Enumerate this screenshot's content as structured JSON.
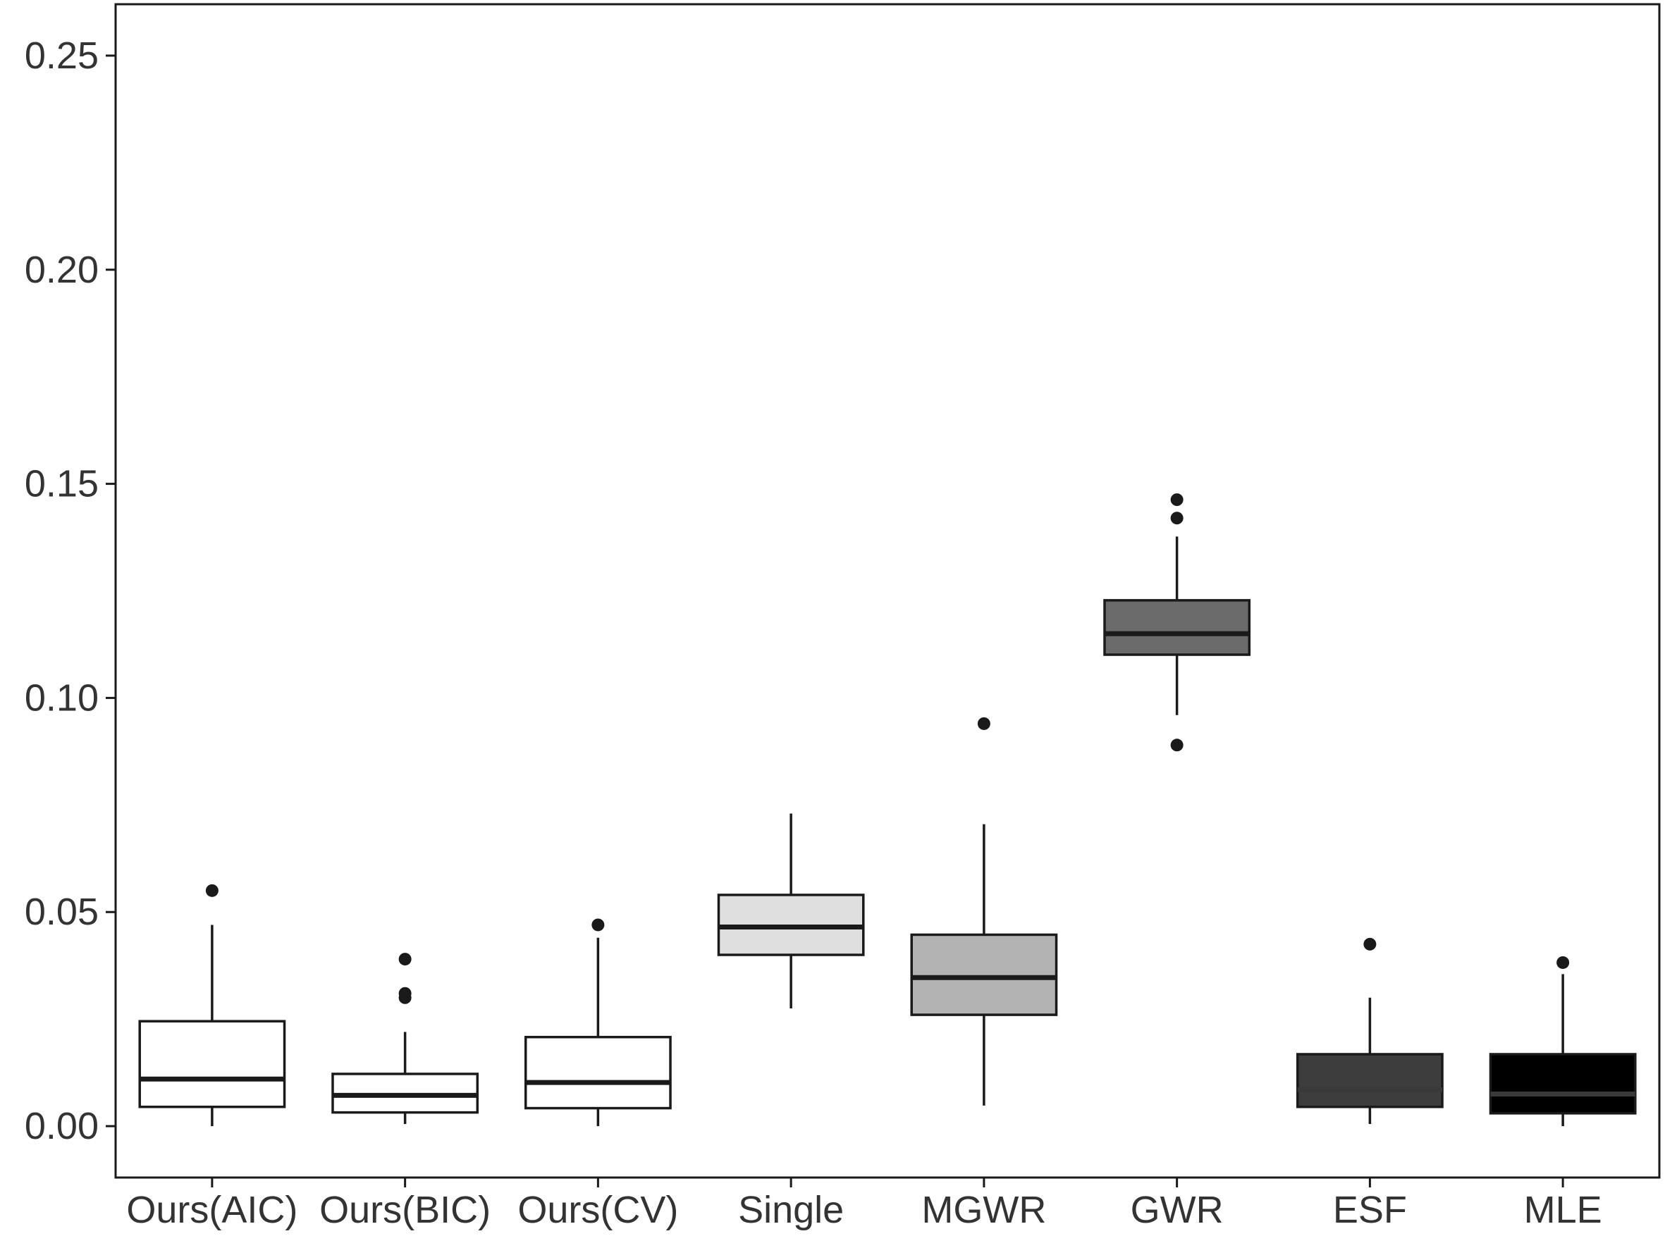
{
  "chart_data": {
    "type": "box",
    "title": "",
    "xlabel": "",
    "ylabel": "",
    "ylim": [
      -0.012,
      0.262
    ],
    "y_ticks": [
      0.0,
      0.05,
      0.1,
      0.15,
      0.2,
      0.25
    ],
    "y_tick_labels": [
      "0.00",
      "0.05",
      "0.10",
      "0.15",
      "0.20",
      "0.25"
    ],
    "categories": [
      "Ours(AIC)",
      "Ours(BIC)",
      "Ours(CV)",
      "Single",
      "MGWR",
      "GWR",
      "ESF",
      "MLE"
    ],
    "grid": false,
    "legend": "none",
    "boxes": [
      {
        "category": "Ours(AIC)",
        "fill": "#ffffff",
        "whisker_low": 0.0,
        "q1": 0.0045,
        "median": 0.011,
        "q3": 0.0245,
        "whisker_high": 0.047,
        "outliers": [
          0.055
        ]
      },
      {
        "category": "Ours(BIC)",
        "fill": "#ffffff",
        "whisker_low": 0.0005,
        "q1": 0.0032,
        "median": 0.0072,
        "q3": 0.0122,
        "whisker_high": 0.022,
        "outliers": [
          0.03,
          0.031,
          0.039
        ]
      },
      {
        "category": "Ours(CV)",
        "fill": "#ffffff",
        "whisker_low": 0.0,
        "q1": 0.0042,
        "median": 0.0102,
        "q3": 0.0208,
        "whisker_high": 0.044,
        "outliers": [
          0.047
        ]
      },
      {
        "category": "Single",
        "fill": "#dfdfdf",
        "whisker_low": 0.0275,
        "q1": 0.04,
        "median": 0.0465,
        "q3": 0.054,
        "whisker_high": 0.073,
        "outliers": []
      },
      {
        "category": "MGWR",
        "fill": "#b3b3b3",
        "whisker_low": 0.0048,
        "q1": 0.026,
        "median": 0.0347,
        "q3": 0.0447,
        "whisker_high": 0.0705,
        "outliers": [
          0.094
        ]
      },
      {
        "category": "GWR",
        "fill": "#6b6b6b",
        "whisker_low": 0.096,
        "q1": 0.1101,
        "median": 0.115,
        "q3": 0.1228,
        "whisker_high": 0.1377,
        "outliers": [
          0.089,
          0.142,
          0.1463
        ]
      },
      {
        "category": "ESF",
        "fill": "#3d3d3d",
        "whisker_low": 0.0005,
        "q1": 0.0045,
        "median": 0.0085,
        "q3": 0.0168,
        "whisker_high": 0.03,
        "outliers": [
          0.0425
        ]
      },
      {
        "category": "MLE",
        "fill": "#000000",
        "whisker_low": 0.0,
        "q1": 0.003,
        "median": 0.0075,
        "q3": 0.0168,
        "whisker_high": 0.0355,
        "outliers": [
          0.0382
        ]
      }
    ],
    "colors": {
      "axis": "#1a1a1a",
      "stroke": "#1a1a1a",
      "median_on_dark": "#3a3a3a",
      "outlier": "#1a1a1a",
      "tick_text": "#333333"
    }
  }
}
